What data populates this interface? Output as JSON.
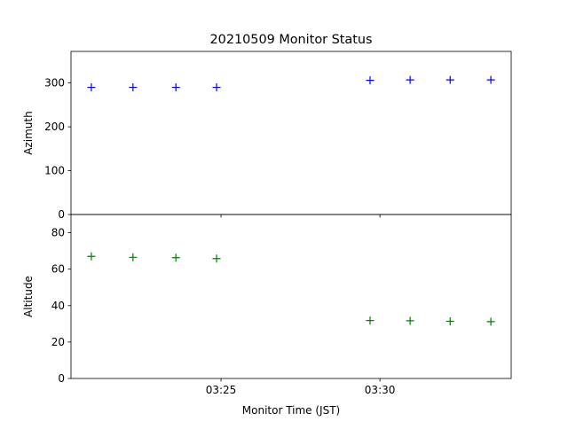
{
  "chart_data": {
    "type": "scatter",
    "title": "20210509 Monitor Status",
    "x_label": "Monitor Time (JST)",
    "x": [
      20.92,
      22.23,
      23.58,
      24.86,
      29.69,
      30.95,
      32.21,
      33.49
    ],
    "xlim": [
      20.28,
      34.13
    ],
    "xticks": [
      {
        "value": 25,
        "label": "03:25"
      },
      {
        "value": 30,
        "label": "03:30"
      }
    ],
    "panels": [
      {
        "y_label": "Azimuth",
        "ylim": [
          0,
          372
        ],
        "yticks": [
          0,
          100,
          200,
          300
        ],
        "series": [
          {
            "color": "#0000ff",
            "values": [
              290,
              290,
              290,
              290,
              306,
              307,
              307,
              307
            ]
          }
        ]
      },
      {
        "y_label": "Altitude",
        "ylim": [
          0,
          90
        ],
        "yticks": [
          0,
          20,
          40,
          60,
          80
        ],
        "series": [
          {
            "color": "#008000",
            "values": [
              67,
              66.5,
              66.3,
              65.8,
              31.8,
              31.7,
              31.4,
              31.2
            ]
          }
        ]
      }
    ]
  }
}
